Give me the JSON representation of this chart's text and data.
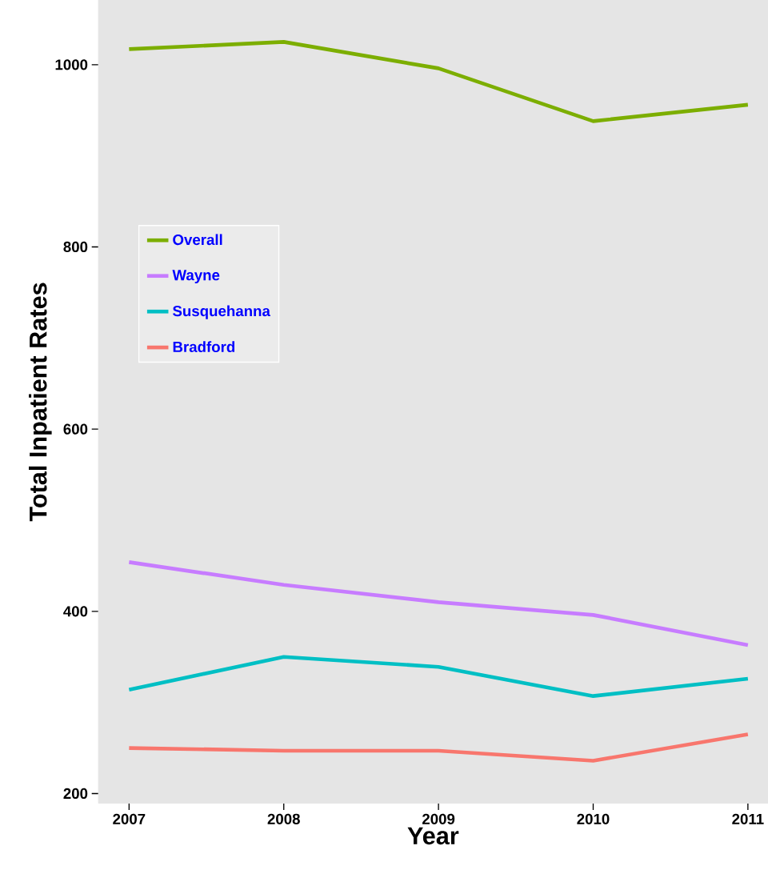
{
  "chart_data": {
    "type": "line",
    "xlabel": "Year",
    "ylabel": "Total Inpatient Rates",
    "x": [
      2007,
      2008,
      2009,
      2010,
      2011
    ],
    "xlim": [
      2006.8,
      2011.13
    ],
    "ylim": [
      189,
      1071
    ],
    "xticks": [
      2007,
      2008,
      2009,
      2010,
      2011
    ],
    "yticks": [
      200,
      400,
      600,
      800,
      1000
    ],
    "grid": false,
    "legend": "top left",
    "marker": "none",
    "line_style": "solid",
    "series": [
      {
        "name": "Overall",
        "color": "#7cae00",
        "values": [
          1017,
          1025,
          996,
          938,
          956
        ]
      },
      {
        "name": "Wayne",
        "color": "#c77cff",
        "values": [
          454,
          429,
          410,
          396,
          363
        ]
      },
      {
        "name": "Susquehanna",
        "color": "#00bfc4",
        "values": [
          314,
          350,
          339,
          307,
          326
        ]
      },
      {
        "name": "Bradford",
        "color": "#f8766d",
        "values": [
          250,
          247,
          247,
          236,
          265
        ]
      }
    ]
  }
}
